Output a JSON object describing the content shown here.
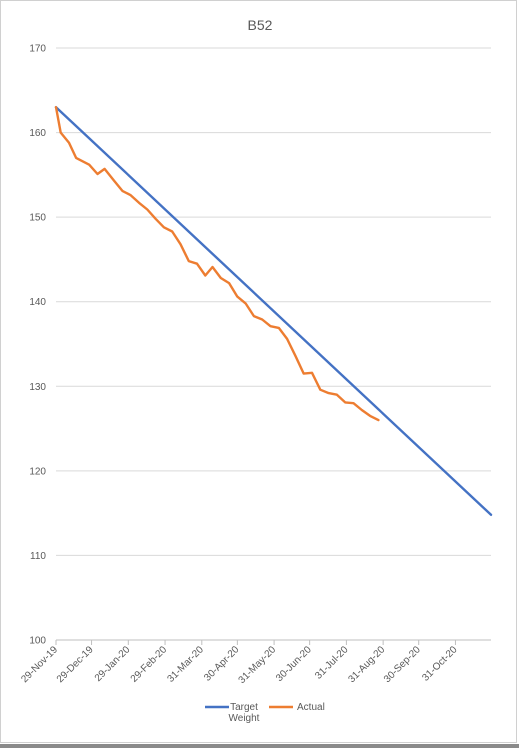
{
  "chart_data": {
    "type": "line",
    "title": "B52",
    "xlabel": "",
    "ylabel": "",
    "ylim": [
      100,
      170
    ],
    "yticks": [
      100,
      110,
      120,
      130,
      140,
      150,
      160,
      170
    ],
    "xlim": [
      "2019-11-29",
      "2020-11-30"
    ],
    "xticks": [
      {
        "date": "2019-11-29",
        "label": "29-Nov-19"
      },
      {
        "date": "2019-12-29",
        "label": "29-Dec-19"
      },
      {
        "date": "2020-01-29",
        "label": "29-Jan-20"
      },
      {
        "date": "2020-02-29",
        "label": "29-Feb-20"
      },
      {
        "date": "2020-03-31",
        "label": "31-Mar-20"
      },
      {
        "date": "2020-04-30",
        "label": "30-Apr-20"
      },
      {
        "date": "2020-05-31",
        "label": "31-May-20"
      },
      {
        "date": "2020-06-30",
        "label": "30-Jun-20"
      },
      {
        "date": "2020-07-31",
        "label": "31-Jul-20"
      },
      {
        "date": "2020-08-31",
        "label": "31-Aug-20"
      },
      {
        "date": "2020-09-30",
        "label": "30-Sep-20"
      },
      {
        "date": "2020-10-31",
        "label": "31-Oct-20"
      }
    ],
    "grid": true,
    "legend_position": "bottom",
    "series": [
      {
        "name": "Target Weight",
        "color": "#4472C4",
        "points": [
          {
            "x": "2019-11-29",
            "y": 163
          },
          {
            "x": "2020-11-30",
            "y": 114.8
          }
        ]
      },
      {
        "name": "Actual",
        "color": "#ED7D31",
        "points": [
          {
            "x": "2019-11-29",
            "y": 163
          },
          {
            "x": "2019-12-03",
            "y": 160
          },
          {
            "x": "2019-12-10",
            "y": 158.8
          },
          {
            "x": "2019-12-16",
            "y": 157
          },
          {
            "x": "2019-12-27",
            "y": 156.2
          },
          {
            "x": "2020-01-03",
            "y": 155.1
          },
          {
            "x": "2020-01-09",
            "y": 155.7
          },
          {
            "x": "2020-01-17",
            "y": 154.3
          },
          {
            "x": "2020-01-24",
            "y": 153.1
          },
          {
            "x": "2020-01-31",
            "y": 152.6
          },
          {
            "x": "2020-02-07",
            "y": 151.7
          },
          {
            "x": "2020-02-14",
            "y": 150.9
          },
          {
            "x": "2020-02-21",
            "y": 149.8
          },
          {
            "x": "2020-02-28",
            "y": 148.8
          },
          {
            "x": "2020-03-06",
            "y": 148.3
          },
          {
            "x": "2020-03-13",
            "y": 146.8
          },
          {
            "x": "2020-03-20",
            "y": 144.8
          },
          {
            "x": "2020-03-27",
            "y": 144.5
          },
          {
            "x": "2020-04-03",
            "y": 143.1
          },
          {
            "x": "2020-04-09",
            "y": 144.1
          },
          {
            "x": "2020-04-16",
            "y": 142.8
          },
          {
            "x": "2020-04-23",
            "y": 142.2
          },
          {
            "x": "2020-04-30",
            "y": 140.6
          },
          {
            "x": "2020-05-07",
            "y": 139.8
          },
          {
            "x": "2020-05-14",
            "y": 138.3
          },
          {
            "x": "2020-05-21",
            "y": 137.9
          },
          {
            "x": "2020-05-28",
            "y": 137.1
          },
          {
            "x": "2020-06-04",
            "y": 136.9
          },
          {
            "x": "2020-06-11",
            "y": 135.6
          },
          {
            "x": "2020-06-18",
            "y": 133.6
          },
          {
            "x": "2020-06-25",
            "y": 131.5
          },
          {
            "x": "2020-07-02",
            "y": 131.6
          },
          {
            "x": "2020-07-09",
            "y": 129.6
          },
          {
            "x": "2020-07-16",
            "y": 129.2
          },
          {
            "x": "2020-07-23",
            "y": 129
          },
          {
            "x": "2020-07-30",
            "y": 128.1
          },
          {
            "x": "2020-08-06",
            "y": 128
          },
          {
            "x": "2020-08-13",
            "y": 127.2
          },
          {
            "x": "2020-08-20",
            "y": 126.5
          },
          {
            "x": "2020-08-27",
            "y": 126
          }
        ]
      }
    ]
  }
}
